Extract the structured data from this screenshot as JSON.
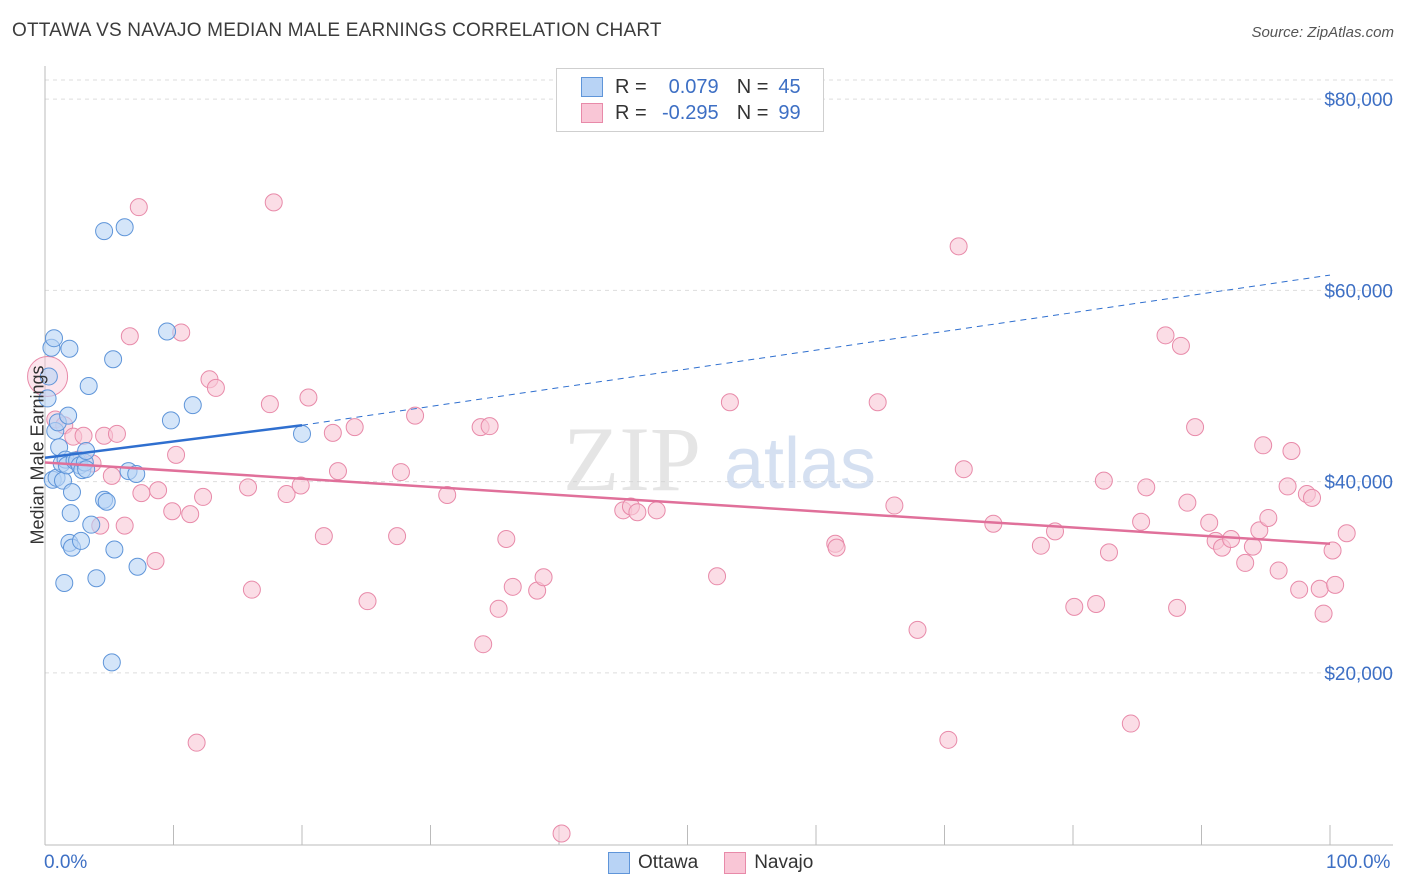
{
  "title": "OTTAWA VS NAVAJO MEDIAN MALE EARNINGS CORRELATION CHART",
  "source": "Source: ZipAtlas.com",
  "legend": {
    "r_label": "R =",
    "n_label": "N =",
    "rows": [
      {
        "name": "Ottawa",
        "r": "0.079",
        "n": "45"
      },
      {
        "name": "Navajo",
        "r": "-0.295",
        "n": "99"
      }
    ]
  },
  "colors": {
    "ottawa_fill": "#b8d3f5",
    "ottawa_stroke": "#5f95d9",
    "ottawa_line": "#2f6fcf",
    "navajo_fill": "#f9c6d6",
    "navajo_stroke": "#e88aa9",
    "navajo_line": "#e0709a",
    "axis_label": "#3d6fc4",
    "grid": "#dddddd",
    "watermark": "#d0d0d0"
  },
  "watermark": {
    "zip": "ZIP",
    "atlas": "atlas"
  },
  "chart_data": {
    "type": "scatter",
    "title": "OTTAWA VS NAVAJO MEDIAN MALE EARNINGS CORRELATION CHART",
    "xlabel": "",
    "ylabel": "Median Male Earnings",
    "xlim": [
      0,
      100
    ],
    "ylim": [
      2000,
      82000
    ],
    "x_tick_labels": [
      "0.0%",
      "100.0%"
    ],
    "y_ticks": [
      20000,
      40000,
      60000,
      80000
    ],
    "y_tick_labels": [
      "$20,000",
      "$40,000",
      "$60,000",
      "$80,000"
    ],
    "grid": true,
    "legend_position": "top-center",
    "series": [
      {
        "name": "Ottawa",
        "points": [
          [
            0.2,
            48700
          ],
          [
            0.3,
            51000
          ],
          [
            0.5,
            54000
          ],
          [
            0.6,
            40200
          ],
          [
            0.7,
            55000
          ],
          [
            0.8,
            45300
          ],
          [
            0.9,
            40400
          ],
          [
            1.0,
            46200
          ],
          [
            1.1,
            43600
          ],
          [
            1.3,
            41900
          ],
          [
            1.4,
            40100
          ],
          [
            1.5,
            29400
          ],
          [
            1.6,
            42300
          ],
          [
            1.7,
            41700
          ],
          [
            1.8,
            46900
          ],
          [
            1.9,
            33600
          ],
          [
            1.9,
            53900
          ],
          [
            2.0,
            36700
          ],
          [
            2.1,
            33100
          ],
          [
            2.1,
            38900
          ],
          [
            2.3,
            42200
          ],
          [
            2.5,
            42200
          ],
          [
            2.7,
            41700
          ],
          [
            2.8,
            33800
          ],
          [
            2.9,
            41200
          ],
          [
            3.1,
            42000
          ],
          [
            3.2,
            41300
          ],
          [
            3.2,
            43200
          ],
          [
            3.4,
            50000
          ],
          [
            3.6,
            35500
          ],
          [
            4.0,
            29900
          ],
          [
            4.6,
            66200
          ],
          [
            4.6,
            38100
          ],
          [
            4.8,
            37900
          ],
          [
            5.2,
            21100
          ],
          [
            5.3,
            52800
          ],
          [
            5.4,
            32900
          ],
          [
            6.2,
            66600
          ],
          [
            6.5,
            41100
          ],
          [
            7.1,
            40800
          ],
          [
            7.2,
            31100
          ],
          [
            9.5,
            55700
          ],
          [
            9.8,
            46400
          ],
          [
            11.5,
            48000
          ],
          [
            20.0,
            45000
          ]
        ],
        "trend": {
          "x0": 0,
          "y0": 42500,
          "x1": 20,
          "y1": 45900,
          "dashed_to_x": 100,
          "dashed_to_y": 61600
        }
      },
      {
        "name": "Navajo",
        "points": [
          [
            0.2,
            51000
          ],
          [
            0.8,
            46500
          ],
          [
            1.5,
            45900
          ],
          [
            2.2,
            44700
          ],
          [
            2.6,
            42300
          ],
          [
            3.0,
            44800
          ],
          [
            3.7,
            41900
          ],
          [
            4.3,
            35400
          ],
          [
            4.6,
            44800
          ],
          [
            5.2,
            40600
          ],
          [
            5.6,
            45000
          ],
          [
            6.2,
            35400
          ],
          [
            6.6,
            55200
          ],
          [
            7.3,
            68700
          ],
          [
            7.5,
            38800
          ],
          [
            8.6,
            31700
          ],
          [
            8.8,
            39100
          ],
          [
            9.9,
            36900
          ],
          [
            10.2,
            42800
          ],
          [
            10.6,
            55600
          ],
          [
            11.3,
            36600
          ],
          [
            11.8,
            12700
          ],
          [
            12.3,
            38400
          ],
          [
            12.8,
            50700
          ],
          [
            13.3,
            49800
          ],
          [
            15.8,
            39400
          ],
          [
            16.1,
            28700
          ],
          [
            17.5,
            48100
          ],
          [
            17.8,
            69200
          ],
          [
            18.8,
            38700
          ],
          [
            19.9,
            39600
          ],
          [
            20.5,
            48800
          ],
          [
            21.7,
            34300
          ],
          [
            22.4,
            45100
          ],
          [
            22.8,
            41100
          ],
          [
            24.1,
            45700
          ],
          [
            25.1,
            27500
          ],
          [
            27.4,
            34300
          ],
          [
            27.7,
            41000
          ],
          [
            28.8,
            46900
          ],
          [
            31.3,
            38600
          ],
          [
            33.9,
            45700
          ],
          [
            34.1,
            23000
          ],
          [
            34.6,
            45800
          ],
          [
            35.3,
            26700
          ],
          [
            35.9,
            34000
          ],
          [
            36.4,
            29000
          ],
          [
            38.3,
            28600
          ],
          [
            38.8,
            30000
          ],
          [
            40.2,
            3200
          ],
          [
            45.0,
            37000
          ],
          [
            45.6,
            37400
          ],
          [
            46.1,
            36800
          ],
          [
            47.6,
            37000
          ],
          [
            52.3,
            30100
          ],
          [
            53.3,
            48300
          ],
          [
            61.5,
            33500
          ],
          [
            61.6,
            33100
          ],
          [
            64.8,
            48300
          ],
          [
            66.1,
            37500
          ],
          [
            67.9,
            24500
          ],
          [
            70.3,
            13000
          ],
          [
            71.1,
            64600
          ],
          [
            71.5,
            41300
          ],
          [
            73.8,
            35600
          ],
          [
            77.5,
            33300
          ],
          [
            78.6,
            34800
          ],
          [
            80.1,
            26900
          ],
          [
            81.8,
            27200
          ],
          [
            82.4,
            40100
          ],
          [
            82.8,
            32600
          ],
          [
            84.5,
            14700
          ],
          [
            85.3,
            35800
          ],
          [
            85.7,
            39400
          ],
          [
            87.2,
            55300
          ],
          [
            88.1,
            26800
          ],
          [
            88.4,
            54200
          ],
          [
            88.9,
            37800
          ],
          [
            89.5,
            45700
          ],
          [
            90.6,
            35700
          ],
          [
            91.1,
            33800
          ],
          [
            91.6,
            33100
          ],
          [
            92.3,
            34000
          ],
          [
            93.4,
            31500
          ],
          [
            94.0,
            33200
          ],
          [
            94.5,
            34900
          ],
          [
            94.8,
            43800
          ],
          [
            95.2,
            36200
          ],
          [
            96.0,
            30700
          ],
          [
            96.7,
            39500
          ],
          [
            97.0,
            43200
          ],
          [
            97.6,
            28700
          ],
          [
            98.2,
            38700
          ],
          [
            98.6,
            38300
          ],
          [
            99.2,
            28800
          ],
          [
            99.5,
            26200
          ],
          [
            100.2,
            32800
          ],
          [
            100.4,
            29200
          ],
          [
            101.3,
            34600
          ]
        ],
        "trend": {
          "x0": 0,
          "y0": 42000,
          "x1": 100,
          "y1": 33500
        }
      }
    ]
  }
}
